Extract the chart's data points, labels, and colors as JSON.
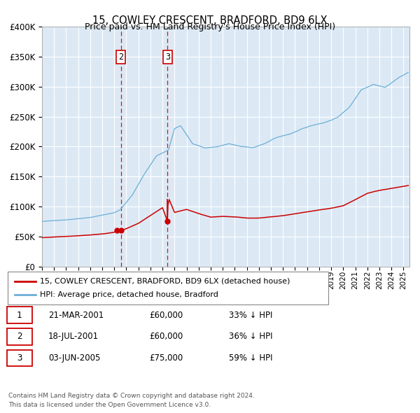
{
  "title": "15, COWLEY CRESCENT, BRADFORD, BD9 6LX",
  "subtitle": "Price paid vs. HM Land Registry's House Price Index (HPI)",
  "hpi_label": "HPI: Average price, detached house, Bradford",
  "property_label": "15, COWLEY CRESCENT, BRADFORD, BD9 6LX (detached house)",
  "transactions": [
    {
      "num": 1,
      "date": "21-MAR-2001",
      "price": 60000,
      "pct": "33%",
      "dir": "↓",
      "x_year": 2001.22
    },
    {
      "num": 2,
      "date": "18-JUL-2001",
      "price": 60000,
      "pct": "36%",
      "dir": "↓",
      "x_year": 2001.54
    },
    {
      "num": 3,
      "date": "03-JUN-2005",
      "price": 75000,
      "pct": "59%",
      "dir": "↓",
      "x_year": 2005.42
    }
  ],
  "ylim": [
    0,
    400000
  ],
  "xlim_start": 1995.0,
  "xlim_end": 2025.5,
  "background_color": "#dce9f5",
  "plot_bg_color": "#dce9f5",
  "hpi_color": "#6baed6",
  "property_color": "#cc0000",
  "vline_color": "#cc0000",
  "grid_color": "#ffffff",
  "footer": "Contains HM Land Registry data © Crown copyright and database right 2024.\nThis data is licensed under the Open Government Licence v3.0.",
  "yticks": [
    0,
    50000,
    100000,
    150000,
    200000,
    250000,
    300000,
    350000,
    400000
  ],
  "ytick_labels": [
    "£0",
    "£50K",
    "£100K",
    "£150K",
    "£200K",
    "£250K",
    "£300K",
    "£350K",
    "£400K"
  ],
  "hpi_anchors": [
    [
      1995.0,
      75000
    ],
    [
      1997.0,
      78000
    ],
    [
      1999.0,
      82000
    ],
    [
      2001.0,
      90000
    ],
    [
      2001.5,
      95000
    ],
    [
      2002.5,
      120000
    ],
    [
      2003.5,
      155000
    ],
    [
      2004.5,
      185000
    ],
    [
      2005.5,
      195000
    ],
    [
      2006.0,
      230000
    ],
    [
      2006.5,
      235000
    ],
    [
      2007.5,
      205000
    ],
    [
      2008.5,
      198000
    ],
    [
      2009.5,
      200000
    ],
    [
      2010.5,
      205000
    ],
    [
      2011.5,
      200000
    ],
    [
      2012.5,
      198000
    ],
    [
      2013.5,
      205000
    ],
    [
      2014.5,
      215000
    ],
    [
      2015.5,
      220000
    ],
    [
      2016.5,
      228000
    ],
    [
      2017.5,
      235000
    ],
    [
      2018.5,
      240000
    ],
    [
      2019.5,
      248000
    ],
    [
      2020.5,
      265000
    ],
    [
      2021.5,
      295000
    ],
    [
      2022.5,
      305000
    ],
    [
      2023.5,
      300000
    ],
    [
      2024.5,
      315000
    ],
    [
      2025.4,
      325000
    ]
  ],
  "prop_anchors": [
    [
      1995.0,
      48000
    ],
    [
      1996.0,
      49000
    ],
    [
      1997.0,
      50000
    ],
    [
      1998.0,
      51000
    ],
    [
      1999.0,
      52500
    ],
    [
      2000.0,
      54000
    ],
    [
      2001.0,
      57000
    ],
    [
      2001.22,
      60000
    ],
    [
      2001.54,
      60000
    ],
    [
      2002.0,
      63000
    ],
    [
      2003.0,
      72000
    ],
    [
      2004.0,
      85000
    ],
    [
      2005.0,
      98000
    ],
    [
      2005.42,
      75000
    ],
    [
      2005.5,
      112000
    ],
    [
      2006.0,
      90000
    ],
    [
      2007.0,
      95000
    ],
    [
      2008.0,
      88000
    ],
    [
      2009.0,
      82000
    ],
    [
      2010.0,
      83000
    ],
    [
      2011.0,
      82000
    ],
    [
      2012.0,
      80000
    ],
    [
      2013.0,
      80000
    ],
    [
      2014.0,
      82000
    ],
    [
      2015.0,
      84000
    ],
    [
      2016.0,
      87000
    ],
    [
      2017.0,
      90000
    ],
    [
      2018.0,
      93000
    ],
    [
      2019.0,
      96000
    ],
    [
      2020.0,
      100000
    ],
    [
      2021.0,
      110000
    ],
    [
      2022.0,
      120000
    ],
    [
      2023.0,
      125000
    ],
    [
      2024.0,
      128000
    ],
    [
      2025.4,
      133000
    ]
  ]
}
